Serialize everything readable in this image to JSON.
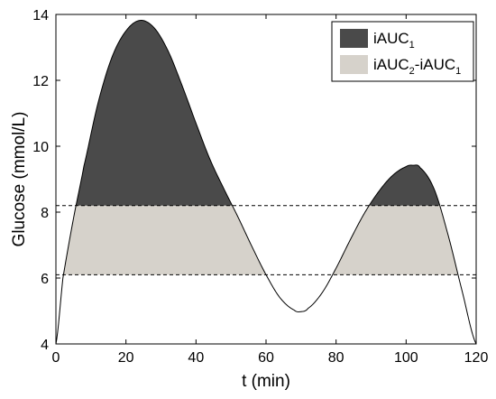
{
  "chart_data": {
    "type": "area",
    "xlabel": "t (min)",
    "ylabel": "Glucose (mmol/L)",
    "xlim": [
      0,
      120
    ],
    "ylim": [
      4,
      14
    ],
    "xticks": [
      "0",
      "20",
      "40",
      "60",
      "80",
      "100",
      "120"
    ],
    "yticks": [
      "4",
      "6",
      "8",
      "10",
      "12",
      "14"
    ],
    "grid": false,
    "legend_position": "top-right",
    "baseline_lower": 6.1,
    "baseline_upper": 8.2,
    "curve": {
      "x": [
        0,
        2,
        5,
        8,
        12,
        16,
        20,
        24,
        28,
        32,
        36,
        40,
        44,
        48,
        52,
        56,
        60,
        64,
        68,
        70,
        72,
        76,
        80,
        84,
        88,
        92,
        96,
        100,
        102,
        104,
        108,
        112,
        116,
        120
      ],
      "y": [
        4.0,
        6.0,
        7.8,
        9.4,
        11.3,
        12.7,
        13.5,
        13.82,
        13.6,
        12.9,
        11.85,
        10.7,
        9.6,
        8.7,
        7.85,
        6.95,
        6.1,
        5.4,
        5.03,
        4.98,
        5.08,
        5.55,
        6.3,
        7.15,
        7.95,
        8.6,
        9.1,
        9.38,
        9.42,
        9.35,
        8.7,
        7.3,
        5.6,
        4.0
      ]
    },
    "series": [
      {
        "name": "iAUC",
        "name_subscript": "1",
        "color": "#4a4a4a"
      },
      {
        "name": "iAUC",
        "name_subscript": "2",
        "name_suffix": "-iAUC",
        "name_suffix_subscript": "1",
        "color": "#d6d2cb"
      }
    ]
  }
}
